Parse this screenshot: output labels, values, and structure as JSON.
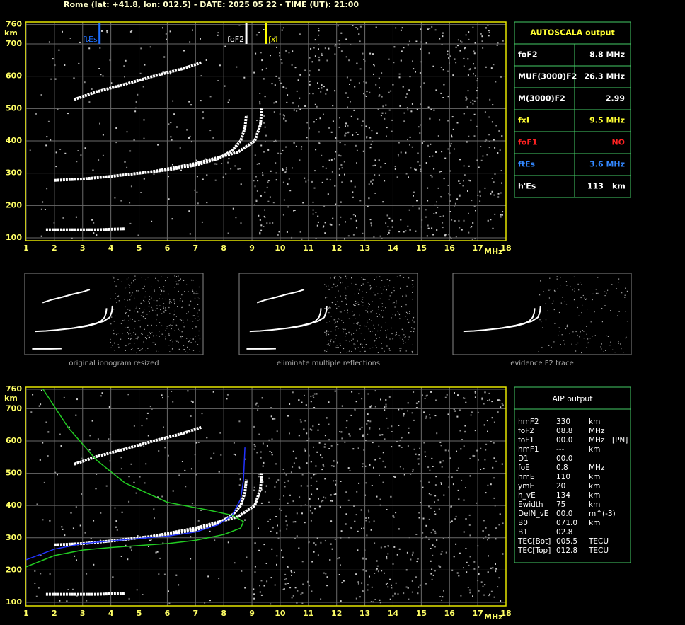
{
  "header": {
    "title": "Rome (lat: +41.8, lon: 012.5) - DATE: 2025 05 22 - TIME (UT): 21:00"
  },
  "ionograms": [
    {
      "xlim": [
        1,
        18
      ],
      "xticks": [
        1,
        2,
        3,
        4,
        5,
        6,
        7,
        8,
        9,
        10,
        11,
        12,
        13,
        14,
        15,
        16,
        17,
        18
      ],
      "ylim": [
        100,
        760
      ],
      "yticks": [
        100,
        200,
        300,
        400,
        500,
        600,
        700,
        760
      ],
      "x_unit": "MHz",
      "y_unit": "km",
      "markers": [
        {
          "label": "ftEs",
          "value": 3.6,
          "color": "#1e6fff"
        },
        {
          "label": "foF2",
          "value": 8.8,
          "color": "#ffffff"
        },
        {
          "label": "fxI",
          "value": 9.5,
          "color": "#ffff00"
        }
      ],
      "traces": [
        {
          "color": "#ffffff",
          "x": [
            2.0,
            3,
            4,
            5,
            6,
            7,
            7.8,
            8.3,
            8.6,
            8.75,
            8.8
          ],
          "y": [
            278,
            282,
            290,
            300,
            310,
            325,
            345,
            370,
            400,
            440,
            480
          ]
        },
        {
          "color": "#ffffff",
          "x": [
            5.5,
            7,
            8.5,
            9.1,
            9.3,
            9.35
          ],
          "y": [
            305,
            330,
            365,
            400,
            450,
            500
          ]
        },
        {
          "color": "#ffffff",
          "x": [
            2.7,
            3.5,
            4.5,
            5.5,
            6.5,
            7.2
          ],
          "y": [
            528,
            552,
            575,
            600,
            622,
            642
          ]
        },
        {
          "color": "#ffffff",
          "x": [
            1.7,
            2.5,
            3.5,
            4.5
          ],
          "y": [
            125,
            125,
            125,
            128
          ]
        }
      ]
    },
    {
      "xlim": [
        1,
        18
      ],
      "xticks": [
        1,
        2,
        3,
        4,
        5,
        6,
        7,
        8,
        9,
        10,
        11,
        12,
        13,
        14,
        15,
        16,
        17,
        18
      ],
      "ylim": [
        100,
        760
      ],
      "yticks": [
        100,
        200,
        300,
        400,
        500,
        600,
        700,
        760
      ],
      "x_unit": "MHz",
      "y_unit": "km",
      "traces": [
        {
          "color": "#ffffff",
          "x": [
            2.0,
            3,
            4,
            5,
            6,
            7,
            7.8,
            8.3,
            8.6,
            8.75,
            8.8
          ],
          "y": [
            278,
            282,
            290,
            300,
            310,
            325,
            345,
            370,
            400,
            440,
            480
          ]
        },
        {
          "color": "#ffffff",
          "x": [
            5.5,
            7,
            8.5,
            9.1,
            9.3,
            9.35
          ],
          "y": [
            305,
            330,
            365,
            400,
            450,
            500
          ]
        },
        {
          "color": "#ffffff",
          "x": [
            2.7,
            3.5,
            4.5,
            5.5,
            6.5,
            7.2
          ],
          "y": [
            528,
            552,
            575,
            600,
            622,
            642
          ]
        },
        {
          "color": "#ffffff",
          "x": [
            1.7,
            2.5,
            3.5,
            4.5
          ],
          "y": [
            125,
            125,
            125,
            128
          ]
        },
        {
          "color": "#2233ff",
          "x": [
            1,
            2,
            3,
            4,
            5,
            6,
            7,
            7.8,
            8.3,
            8.6,
            8.7,
            8.75
          ],
          "y": [
            232,
            265,
            282,
            290,
            298,
            305,
            318,
            340,
            370,
            420,
            480,
            580
          ]
        },
        {
          "color": "#22cc22",
          "x": [
            1,
            2,
            3,
            4,
            5,
            6,
            7,
            8,
            8.6,
            8.7,
            8.3,
            7.5,
            6,
            4.5,
            3.5,
            2.5,
            1.6
          ],
          "y": [
            210,
            245,
            262,
            270,
            276,
            282,
            292,
            310,
            330,
            350,
            370,
            385,
            410,
            470,
            540,
            640,
            760
          ]
        }
      ]
    }
  ],
  "thumbnails": [
    {
      "caption": "original ionogram resized"
    },
    {
      "caption": "eliminate multiple reflections"
    },
    {
      "caption": "evidence F2 trace"
    }
  ],
  "autoscala": {
    "title": "AUTOSCALA output",
    "rows": [
      {
        "label": "foF2",
        "value": "8.8 MHz",
        "color": "#ffffff"
      },
      {
        "label": "MUF(3000)F2",
        "value": "26.3 MHz",
        "color": "#ffffff"
      },
      {
        "label": "M(3000)F2",
        "value": "2.99",
        "color": "#ffffff"
      },
      {
        "label": "fxI",
        "value": "9.5 MHz",
        "color": "#ffff33"
      },
      {
        "label": "foF1",
        "value": "NO",
        "color": "#ff2222"
      },
      {
        "label": "ftEs",
        "value": "3.6 MHz",
        "color": "#3388ff"
      },
      {
        "label": "h'Es",
        "value": "113",
        "unit": "km",
        "color": "#ffffff"
      }
    ]
  },
  "aip": {
    "title": "AIP output",
    "rows": [
      [
        "hmF2",
        "330",
        "km"
      ],
      [
        "foF2",
        "08.8",
        "MHz"
      ],
      [
        "foF1",
        "00.0",
        "MHz",
        "[PN]"
      ],
      [
        "hmF1",
        "---",
        "km"
      ],
      [
        "D1",
        "00.0"
      ],
      [
        "foE",
        "0.8",
        "MHz"
      ],
      [
        "hmE",
        "110",
        "km"
      ],
      [
        "ymE",
        "20",
        "km"
      ],
      [
        "h_vE",
        "134",
        "km"
      ],
      [
        "Ewidth",
        "75",
        "km"
      ],
      [
        "DelN_vE",
        "00.0",
        "m^(-3)"
      ],
      [
        "B0",
        "071.0",
        "km"
      ],
      [
        "B1",
        "02.8"
      ],
      [
        "TEC[Bot]",
        "005.5",
        "TECU"
      ],
      [
        "TEC[Top]",
        "012.8",
        "TECU"
      ]
    ]
  }
}
